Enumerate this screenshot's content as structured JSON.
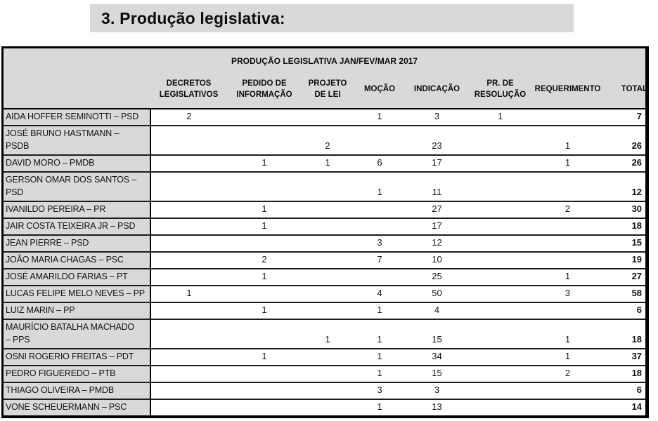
{
  "page": {
    "heading": "3. Produção legislativa:"
  },
  "table": {
    "title": "PRODUÇÃO LEGISLATIVA JAN/FEV/MAR 2017",
    "columns": [
      "DECRETOS LEGISLATIVOS",
      "PEDIDO DE INFORMAÇÃO",
      "PROJETO DE LEI",
      "MOÇÃO",
      "INDICAÇÃO",
      "PR. DE RESOLUÇÃO",
      "REQUERIMENTO",
      "TOTAL"
    ],
    "rows": [
      {
        "name": "AIDA HOFFER SEMINOTTI – PSD",
        "values": [
          "2",
          "",
          "",
          "1",
          "3",
          "1",
          ""
        ],
        "total": "7"
      },
      {
        "name": "JOSÉ BRUNO HASTMANN –\nPSDB",
        "values": [
          "",
          "",
          "2",
          "",
          "23",
          "",
          "1"
        ],
        "total": "26"
      },
      {
        "name": "DAVID MORO – PMDB",
        "values": [
          "",
          "1",
          "1",
          "6",
          "17",
          "",
          "1"
        ],
        "total": "26"
      },
      {
        "name": "GERSON OMAR DOS SANTOS –\nPSD",
        "values": [
          "",
          "",
          "",
          "1",
          "11",
          "",
          ""
        ],
        "total": "12"
      },
      {
        "name": "IVANILDO PEREIRA – PR",
        "values": [
          "",
          "1",
          "",
          "",
          "27",
          "",
          "2"
        ],
        "total": "30"
      },
      {
        "name": "JAIR COSTA TEIXEIRA JR – PSD",
        "values": [
          "",
          "1",
          "",
          "",
          "17",
          "",
          ""
        ],
        "total": "18"
      },
      {
        "name": "JEAN PIERRE – PSD",
        "values": [
          "",
          "",
          "",
          "3",
          "12",
          "",
          ""
        ],
        "total": "15"
      },
      {
        "name": "JOÃO MARIA CHAGAS – PSC",
        "values": [
          "",
          "2",
          "",
          "7",
          "10",
          "",
          ""
        ],
        "total": "19"
      },
      {
        "name": "JOSÉ AMARILDO FARIAS – PT",
        "values": [
          "",
          "1",
          "",
          "",
          "25",
          "",
          "1"
        ],
        "total": "27"
      },
      {
        "name": "LUCAS FELIPE MELO NEVES – PP",
        "values": [
          "1",
          "",
          "",
          "4",
          "50",
          "",
          "3"
        ],
        "total": "58"
      },
      {
        "name": "LUIZ MARIN – PP",
        "values": [
          "",
          "1",
          "",
          "1",
          "4",
          "",
          ""
        ],
        "total": "6"
      },
      {
        "name": "MAURÍCIO BATALHA MACHADO\n– PPS",
        "values": [
          "",
          "",
          "1",
          "1",
          "15",
          "",
          "1"
        ],
        "total": "18"
      },
      {
        "name": "OSNI ROGERIO FREITAS – PDT",
        "values": [
          "",
          "1",
          "",
          "1",
          "34",
          "",
          "1"
        ],
        "total": "37"
      },
      {
        "name": "PEDRO FIGUEREDO – PTB",
        "values": [
          "",
          "",
          "",
          "1",
          "15",
          "",
          "2"
        ],
        "total": "18"
      },
      {
        "name": "THIAGO OLIVEIRA – PMDB",
        "values": [
          "",
          "",
          "",
          "3",
          "3",
          "",
          ""
        ],
        "total": "6"
      },
      {
        "name": "VONE SCHEUERMANN – PSC",
        "values": [
          "",
          "",
          "",
          "1",
          "13",
          "",
          ""
        ],
        "total": "14"
      }
    ]
  },
  "colors": {
    "shading_gray": "#d9d9d9",
    "border_black": "#000000",
    "text": "#111111"
  }
}
